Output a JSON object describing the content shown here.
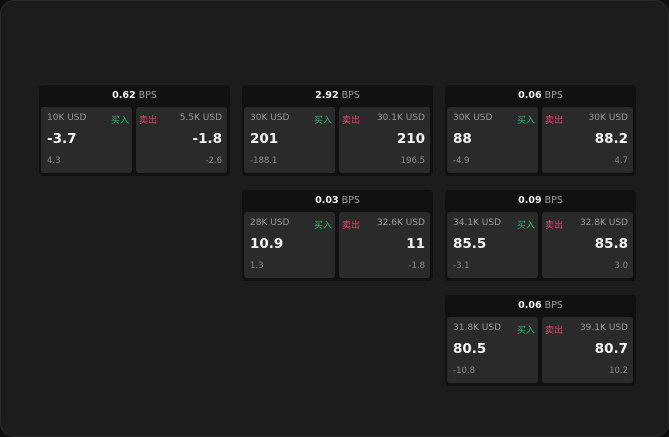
{
  "labels": {
    "unit": "BPS",
    "buy": "买入",
    "sell": "卖出"
  },
  "colors": {
    "buy": "#2fb36b",
    "sell": "#e0456f"
  },
  "cards": [
    {
      "spread": "0.62",
      "bid_size": "10K USD",
      "bid": "-3.7",
      "bid_change": "4.3",
      "ask_size": "5.5K USD",
      "ask": "-1.8",
      "ask_change": "-2.6"
    },
    {
      "spread": "2.92",
      "bid_size": "30K USD",
      "bid": "201",
      "bid_change": "-188.1",
      "ask_size": "30.1K USD",
      "ask": "210",
      "ask_change": "196.5"
    },
    {
      "spread": "0.06",
      "bid_size": "30K USD",
      "bid": "88",
      "bid_change": "-4.9",
      "ask_size": "30K USD",
      "ask": "88.2",
      "ask_change": "4.7"
    },
    {
      "spread": "0.03",
      "bid_size": "28K USD",
      "bid": "10.9",
      "bid_change": "1.3",
      "ask_size": "32.6K USD",
      "ask": "11",
      "ask_change": "-1.8"
    },
    {
      "spread": "0.09",
      "bid_size": "34.1K USD",
      "bid": "85.5",
      "bid_change": "-3.1",
      "ask_size": "32.8K USD",
      "ask": "85.8",
      "ask_change": "3.0"
    },
    {
      "spread": "0.06",
      "bid_size": "31.8K USD",
      "bid": "80.5",
      "bid_change": "-10.8",
      "ask_size": "39.1K USD",
      "ask": "80.7",
      "ask_change": "10.2"
    }
  ]
}
